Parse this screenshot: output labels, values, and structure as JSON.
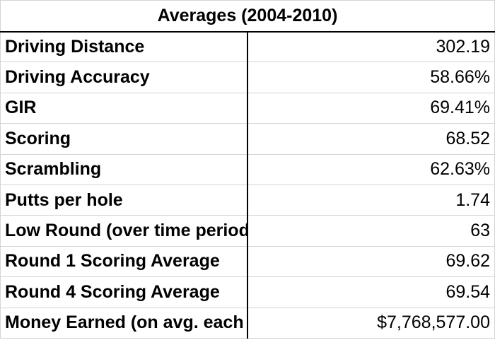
{
  "header": {
    "title": "Averages (2004-2010)"
  },
  "table": {
    "rows": [
      [
        "Driving Distance",
        "302.19"
      ],
      [
        "Driving Accuracy",
        "58.66%"
      ],
      [
        "GIR",
        "69.41%"
      ],
      [
        "Scoring",
        "68.52"
      ],
      [
        "Scrambling",
        "62.63%"
      ],
      [
        "Putts per hole",
        "1.74"
      ],
      [
        "Low Round (over time period)",
        "63"
      ],
      [
        "Round 1 Scoring Average",
        "69.62"
      ],
      [
        "Round 4 Scoring Average",
        "69.54"
      ],
      [
        "Money Earned (on avg. each yr)",
        "$7,768,577.00"
      ]
    ]
  }
}
